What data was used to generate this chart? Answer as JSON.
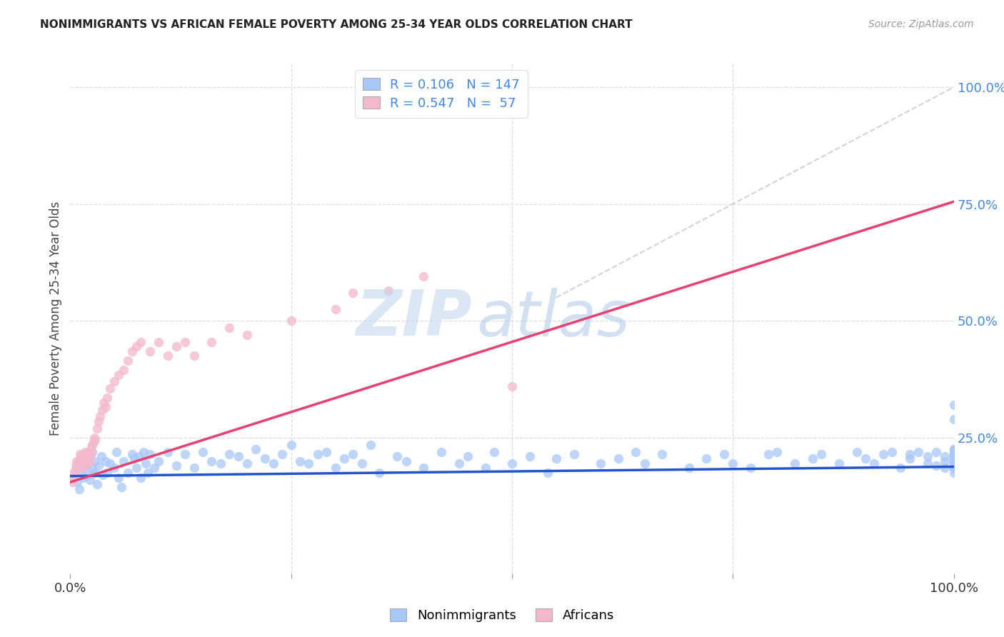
{
  "title": "NONIMMIGRANTS VS AFRICAN FEMALE POVERTY AMONG 25-34 YEAR OLDS CORRELATION CHART",
  "source": "Source: ZipAtlas.com",
  "ylabel": "Female Poverty Among 25-34 Year Olds",
  "xlim": [
    0.0,
    1.0
  ],
  "ylim": [
    -0.04,
    1.05
  ],
  "y_tick_positions": [
    0.25,
    0.5,
    0.75,
    1.0
  ],
  "y_tick_labels": [
    "25.0%",
    "50.0%",
    "75.0%",
    "100.0%"
  ],
  "legend_blue_r": "0.106",
  "legend_blue_n": "147",
  "legend_pink_r": "0.547",
  "legend_pink_n": " 57",
  "blue_color": "#a8c8f8",
  "pink_color": "#f4b8cc",
  "blue_line_color": "#2255cc",
  "pink_line_color": "#e84070",
  "diag_line_color": "#c8c8c8",
  "title_color": "#222222",
  "right_axis_color": "#4488dd",
  "grid_color": "#dddddd",
  "grid_style": "--",
  "nonimmigrants_x": [
    0.008,
    0.01,
    0.012,
    0.015,
    0.018,
    0.02,
    0.022,
    0.025,
    0.025,
    0.027,
    0.028,
    0.03,
    0.032,
    0.035,
    0.037,
    0.04,
    0.042,
    0.045,
    0.05,
    0.052,
    0.055,
    0.058,
    0.06,
    0.065,
    0.07,
    0.072,
    0.075,
    0.078,
    0.08,
    0.083,
    0.085,
    0.088,
    0.09,
    0.095,
    0.1,
    0.11,
    0.12,
    0.13,
    0.14,
    0.15,
    0.16,
    0.17,
    0.18,
    0.19,
    0.2,
    0.21,
    0.22,
    0.23,
    0.24,
    0.25,
    0.26,
    0.27,
    0.28,
    0.29,
    0.3,
    0.31,
    0.32,
    0.33,
    0.34,
    0.35,
    0.37,
    0.38,
    0.4,
    0.42,
    0.44,
    0.45,
    0.47,
    0.48,
    0.5,
    0.52,
    0.54,
    0.55,
    0.57,
    0.6,
    0.62,
    0.64,
    0.65,
    0.67,
    0.7,
    0.72,
    0.74,
    0.75,
    0.77,
    0.79,
    0.8,
    0.82,
    0.84,
    0.85,
    0.87,
    0.89,
    0.9,
    0.91,
    0.92,
    0.93,
    0.94,
    0.95,
    0.95,
    0.96,
    0.97,
    0.97,
    0.98,
    0.98,
    0.99,
    0.99,
    0.99,
    1.0,
    1.0,
    1.0,
    1.0,
    1.0,
    1.0,
    1.0,
    1.0,
    1.0,
    1.0,
    1.0,
    1.0,
    1.0,
    1.0,
    1.0,
    1.0,
    1.0,
    1.0,
    1.0,
    1.0,
    1.0,
    1.0,
    1.0,
    1.0,
    1.0,
    1.0,
    1.0,
    1.0,
    1.0,
    1.0,
    1.0,
    1.0,
    1.0,
    1.0,
    1.0,
    1.0,
    1.0,
    1.0,
    1.0,
    1.0,
    1.0,
    1.0
  ],
  "nonimmigrants_y": [
    0.155,
    0.14,
    0.18,
    0.165,
    0.19,
    0.17,
    0.16,
    0.185,
    0.22,
    0.175,
    0.2,
    0.15,
    0.19,
    0.21,
    0.17,
    0.2,
    0.175,
    0.195,
    0.185,
    0.22,
    0.165,
    0.145,
    0.2,
    0.175,
    0.215,
    0.205,
    0.185,
    0.21,
    0.165,
    0.22,
    0.195,
    0.175,
    0.215,
    0.185,
    0.2,
    0.22,
    0.19,
    0.215,
    0.185,
    0.22,
    0.2,
    0.195,
    0.215,
    0.21,
    0.195,
    0.225,
    0.205,
    0.195,
    0.215,
    0.235,
    0.2,
    0.195,
    0.215,
    0.22,
    0.185,
    0.205,
    0.215,
    0.195,
    0.235,
    0.175,
    0.21,
    0.2,
    0.185,
    0.22,
    0.195,
    0.21,
    0.185,
    0.22,
    0.195,
    0.21,
    0.175,
    0.205,
    0.215,
    0.195,
    0.205,
    0.22,
    0.195,
    0.215,
    0.185,
    0.205,
    0.215,
    0.195,
    0.185,
    0.215,
    0.22,
    0.195,
    0.205,
    0.215,
    0.195,
    0.22,
    0.205,
    0.195,
    0.215,
    0.22,
    0.185,
    0.205,
    0.215,
    0.22,
    0.195,
    0.21,
    0.19,
    0.22,
    0.2,
    0.21,
    0.185,
    0.22,
    0.205,
    0.195,
    0.215,
    0.2,
    0.185,
    0.215,
    0.22,
    0.205,
    0.195,
    0.215,
    0.185,
    0.205,
    0.22,
    0.195,
    0.185,
    0.215,
    0.2,
    0.21,
    0.185,
    0.225,
    0.215,
    0.195,
    0.205,
    0.2,
    0.185,
    0.21,
    0.225,
    0.175,
    0.195,
    0.215,
    0.2,
    0.22,
    0.185,
    0.21,
    0.195,
    0.205,
    0.22,
    0.205,
    0.185,
    0.29,
    0.32
  ],
  "africans_x": [
    0.002,
    0.003,
    0.004,
    0.005,
    0.006,
    0.007,
    0.008,
    0.009,
    0.01,
    0.011,
    0.012,
    0.013,
    0.014,
    0.015,
    0.016,
    0.017,
    0.018,
    0.019,
    0.02,
    0.021,
    0.022,
    0.023,
    0.024,
    0.025,
    0.026,
    0.027,
    0.028,
    0.03,
    0.032,
    0.034,
    0.036,
    0.038,
    0.04,
    0.042,
    0.045,
    0.05,
    0.055,
    0.06,
    0.065,
    0.07,
    0.075,
    0.08,
    0.09,
    0.1,
    0.11,
    0.12,
    0.13,
    0.14,
    0.16,
    0.18,
    0.2,
    0.25,
    0.3,
    0.32,
    0.36,
    0.4,
    0.5
  ],
  "africans_y": [
    0.155,
    0.165,
    0.175,
    0.18,
    0.19,
    0.2,
    0.185,
    0.2,
    0.195,
    0.215,
    0.21,
    0.205,
    0.185,
    0.215,
    0.2,
    0.22,
    0.205,
    0.195,
    0.215,
    0.22,
    0.2,
    0.215,
    0.23,
    0.235,
    0.24,
    0.25,
    0.245,
    0.27,
    0.285,
    0.295,
    0.31,
    0.325,
    0.315,
    0.335,
    0.355,
    0.37,
    0.385,
    0.395,
    0.415,
    0.435,
    0.445,
    0.455,
    0.435,
    0.455,
    0.425,
    0.445,
    0.455,
    0.425,
    0.455,
    0.485,
    0.47,
    0.5,
    0.525,
    0.56,
    0.565,
    0.595,
    0.36
  ],
  "nonimmigrant_line_x": [
    0.0,
    1.0
  ],
  "nonimmigrant_line_y": [
    0.168,
    0.188
  ],
  "african_line_x": [
    0.0,
    1.0
  ],
  "african_line_y": [
    0.155,
    0.755
  ],
  "diag_line_x": [
    0.55,
    1.0
  ],
  "diag_line_y": [
    0.55,
    1.0
  ],
  "watermark_zip_color": "#c5d8f0",
  "watermark_atlas_color": "#b0c8e8"
}
